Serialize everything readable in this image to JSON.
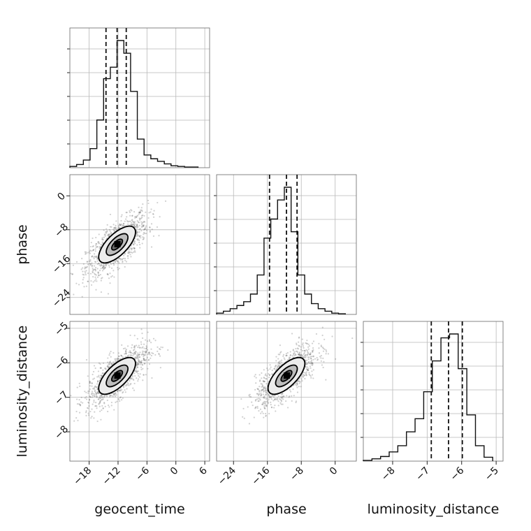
{
  "chart_data": {
    "type": "corner",
    "parameters": [
      "geocent_time",
      "phase",
      "luminosity_distance"
    ],
    "axis_labels": {
      "geocent_time": "geocent_time",
      "phase": "phase",
      "luminosity_distance": "luminosity_distance"
    },
    "ranges": {
      "geocent_time": [
        -22,
        7
      ],
      "phase": [
        -28,
        5
      ],
      "luminosity_distance": [
        -8.85,
        -4.8
      ]
    },
    "ticks": {
      "geocent_time": [
        "-18",
        "-12",
        "-6",
        "0",
        "6"
      ],
      "phase": [
        "-24",
        "-16",
        "-8",
        "0"
      ],
      "luminosity_distance": [
        "-8",
        "-7",
        "-6",
        "-5"
      ]
    },
    "tick_values": {
      "geocent_time": [
        -18,
        -12,
        -6,
        0,
        6
      ],
      "phase": [
        -24,
        -16,
        -8,
        0
      ],
      "luminosity_distance": [
        -8,
        -7,
        -6,
        -5
      ]
    },
    "quantiles": {
      "geocent_time": [
        -14.5,
        -12.2,
        -10.3
      ],
      "phase": [
        -15.5,
        -11.5,
        -9.0
      ],
      "luminosity_distance": [
        -6.88,
        -6.38,
        -5.98
      ]
    },
    "histograms": {
      "geocent_time": {
        "edges": [
          -22,
          -20.6,
          -19.2,
          -17.8,
          -16.4,
          -15.0,
          -13.6,
          -12.2,
          -10.8,
          -9.4,
          -8.0,
          -6.6,
          -5.2,
          -3.8,
          -2.4,
          -1.0,
          0.4,
          1.8,
          3.2,
          4.6
        ],
        "counts": [
          2,
          5,
          12,
          30,
          75,
          140,
          158,
          200,
          180,
          120,
          45,
          20,
          14,
          10,
          6,
          3,
          2,
          1,
          1
        ]
      },
      "phase": {
        "edges": [
          -28,
          -26.4,
          -24.8,
          -23.2,
          -21.6,
          -20.0,
          -18.4,
          -16.8,
          -15.2,
          -13.6,
          -12.0,
          -10.4,
          -8.8,
          -7.2,
          -5.6,
          -4.0,
          -2.4,
          -0.8,
          0.8,
          2.4
        ],
        "counts": [
          2,
          5,
          9,
          14,
          20,
          32,
          62,
          120,
          150,
          180,
          200,
          130,
          62,
          32,
          17,
          9,
          5,
          2,
          1
        ]
      },
      "luminosity_distance": {
        "edges": [
          -8.85,
          -8.6,
          -8.35,
          -8.1,
          -7.85,
          -7.6,
          -7.35,
          -7.1,
          -6.85,
          -6.6,
          -6.35,
          -6.1,
          -5.85,
          -5.6,
          -5.35,
          -5.1
        ],
        "counts": [
          1,
          3,
          6,
          12,
          20,
          38,
          55,
          90,
          130,
          160,
          165,
          120,
          60,
          20,
          5
        ]
      }
    },
    "contour_levels": 3,
    "legend": "none",
    "grid": true
  }
}
